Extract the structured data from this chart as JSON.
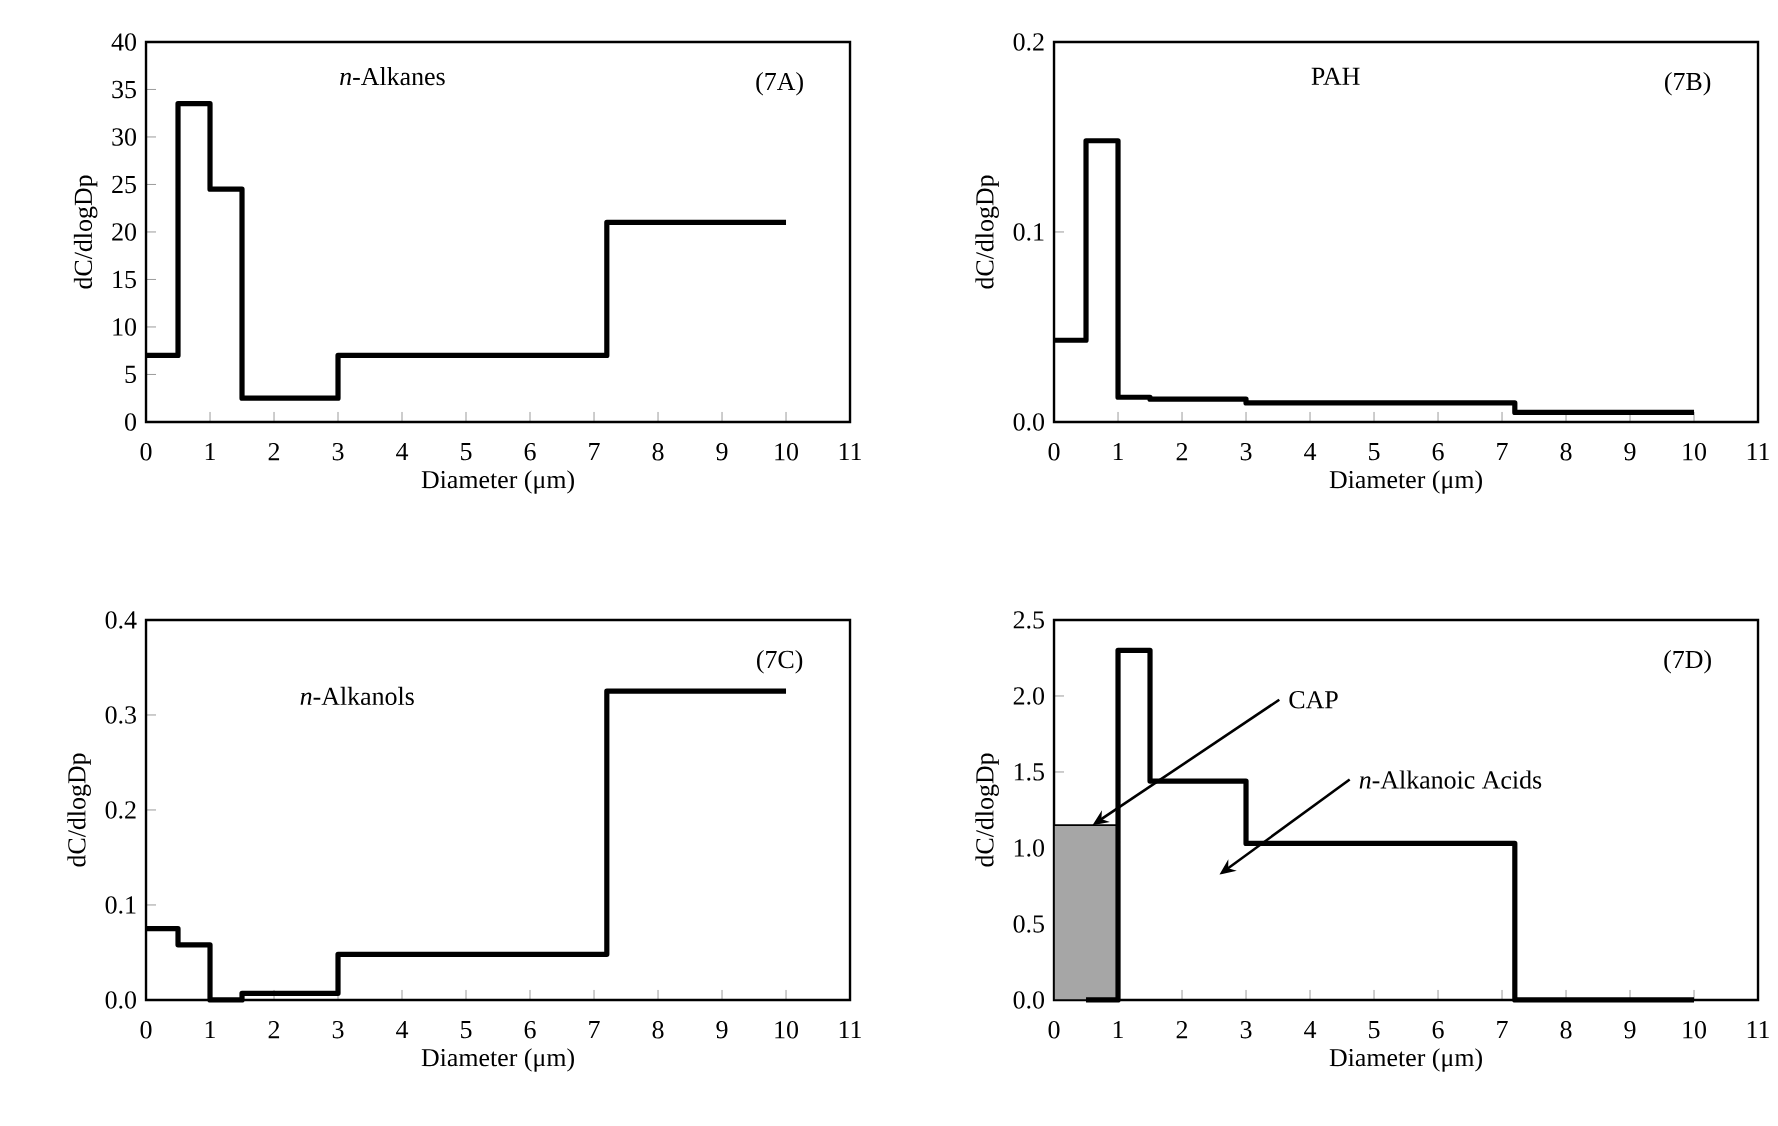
{
  "chart_data": [
    {
      "type": "step",
      "title": "*n*-Alkanes",
      "xlabel": "Diameter (μm)",
      "ylabel": "dC/dlogDp",
      "color": "#000000",
      "x": [
        0,
        0.5,
        1,
        1.5,
        3,
        7.2,
        10
      ],
      "values": [
        7,
        33.5,
        24.5,
        2.5,
        7,
        21,
        21
      ],
      "xlim": [
        0,
        11
      ],
      "xticks": [
        0,
        1,
        2,
        3,
        4,
        5,
        6,
        7,
        8,
        9,
        10,
        11
      ],
      "ylim": [
        0,
        40
      ],
      "yticks": [
        0,
        5,
        10,
        15,
        20,
        25,
        30,
        35,
        40
      ],
      "annotations": [
        "(7A)"
      ]
    },
    {
      "type": "step",
      "title": "PAH",
      "xlabel": "Diameter (μm)",
      "ylabel": "dC/dlogDp",
      "color": "#000000",
      "x": [
        0,
        0.5,
        1,
        1.5,
        3,
        7.2,
        10
      ],
      "values": [
        0.043,
        0.148,
        0.013,
        0.012,
        0.01,
        0.005,
        0.005
      ],
      "xlim": [
        0,
        11
      ],
      "xticks": [
        0,
        1,
        2,
        3,
        4,
        5,
        6,
        7,
        8,
        9,
        10,
        11
      ],
      "ylim": [
        0,
        0.2
      ],
      "yticks": [
        {
          "value": 0,
          "label": "0.0"
        },
        0.1,
        0.2
      ],
      "annotations": [
        "(7B)"
      ]
    },
    {
      "type": "step",
      "title": "*n*-Alkanols",
      "xlabel": "Diameter (μm)",
      "ylabel": "dC/dlogDp",
      "color": "#000000",
      "x": [
        0,
        0.5,
        1,
        1.5,
        3,
        7.2,
        10
      ],
      "values": [
        0.075,
        0.058,
        0.0,
        0.007,
        0.048,
        0.325,
        0.325
      ],
      "xlim": [
        0,
        11
      ],
      "xticks": [
        0,
        1,
        2,
        3,
        4,
        5,
        6,
        7,
        8,
        9,
        10,
        11
      ],
      "ylim": [
        0,
        0.4
      ],
      "yticks": [
        {
          "value": 0,
          "label": "0.0"
        },
        0.1,
        0.2,
        0.3,
        0.4
      ],
      "annotations": [
        "(7C)"
      ]
    },
    {
      "type": "step",
      "xlabel": "Diameter (μm)",
      "ylabel": "dC/dlogDp",
      "series": [
        {
          "type": "area",
          "color": "#000000",
          "x": [
            0,
            0.5,
            1
          ],
          "values": [
            1.15,
            1.15,
            1.15
          ]
        },
        {
          "type": "step",
          "color": "#000000",
          "x": [
            0.5,
            1,
            1.5,
            3,
            7.2,
            10
          ],
          "values": [
            0,
            2.3,
            1.44,
            1.03,
            0,
            0
          ]
        }
      ],
      "xlim": [
        0,
        11
      ],
      "xticks": [
        0,
        1,
        2,
        3,
        4,
        5,
        6,
        7,
        8,
        9,
        10,
        11
      ],
      "ylim": [
        0,
        2.5
      ],
      "yticks": [
        {
          "value": 0,
          "label": "0.0"
        },
        {
          "value": 0.5,
          "label": "0.5"
        },
        {
          "value": 1,
          "label": "1.0"
        },
        1.5,
        {
          "value": 2,
          "label": "2.0"
        },
        2.5
      ],
      "annotations": [
        "(7D)",
        {
          "text": "CAP",
          "x": 0.6,
          "y": 1.15
        },
        "*n*-Alkanoic Acids"
      ]
    }
  ]
}
